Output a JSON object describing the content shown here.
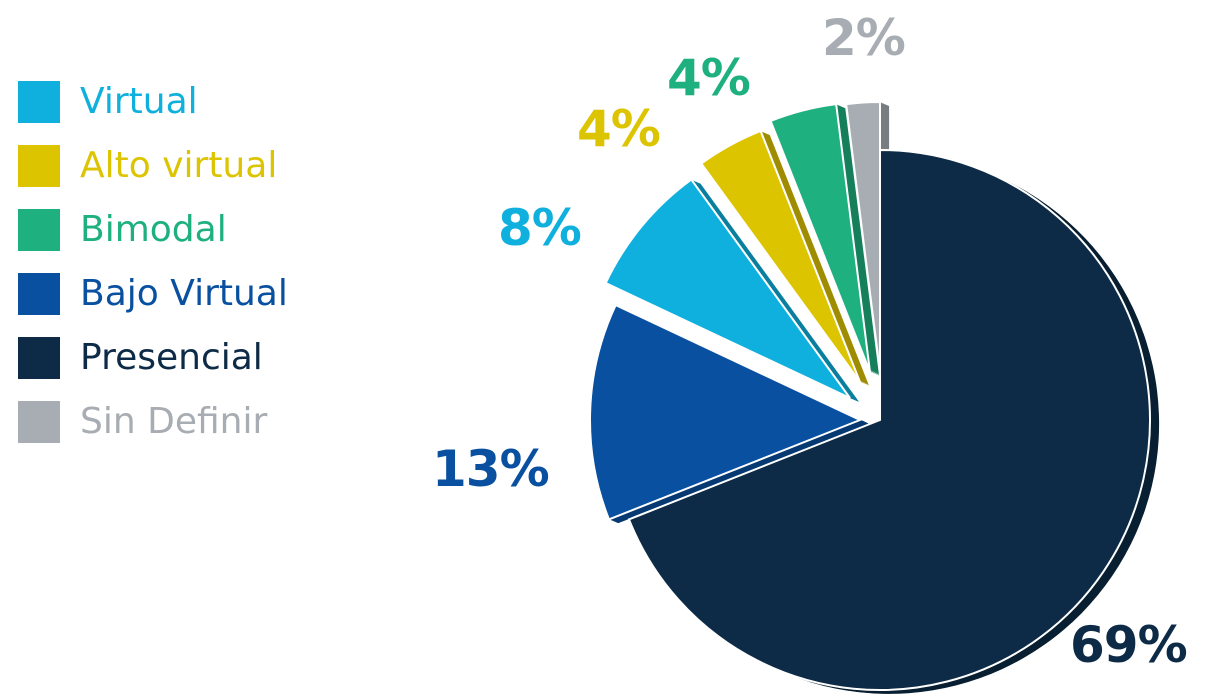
{
  "chart_data": {
    "type": "pie",
    "series": [
      {
        "name": "Presencial",
        "value": 69,
        "label": "69%",
        "color": "#0d2b46"
      },
      {
        "name": "Bajo Virtual",
        "value": 13,
        "label": "13%",
        "color": "#0a50a0"
      },
      {
        "name": "Virtual",
        "value": 8,
        "label": "8%",
        "color": "#0fb0dd"
      },
      {
        "name": "Alto virtual",
        "value": 4,
        "label": "4%",
        "color": "#ddc400"
      },
      {
        "name": "Bimodal",
        "value": 4,
        "label": "4%",
        "color": "#1fb07f"
      },
      {
        "name": "Sin Definir",
        "value": 2,
        "label": "2%",
        "color": "#a7adb2"
      }
    ],
    "legend": {
      "placement": "left",
      "items": [
        {
          "label": "Virtual",
          "color": "#0fb0dd"
        },
        {
          "label": "Alto virtual",
          "color": "#ddc400"
        },
        {
          "label": "Bimodal",
          "color": "#1fb07f"
        },
        {
          "label": "Bajo Virtual",
          "color": "#0a50a0"
        },
        {
          "label": "Presencial",
          "color": "#0d2b46"
        },
        {
          "label": "Sin Definir",
          "color": "#a7adb2"
        }
      ]
    },
    "title": "",
    "style": "3d-exploded"
  }
}
